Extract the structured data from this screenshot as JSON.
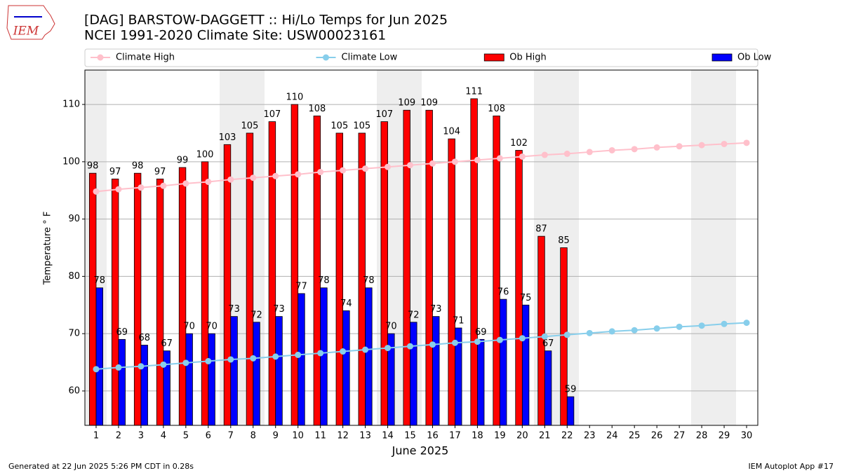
{
  "chart_data": {
    "type": "bar",
    "title": "[DAG] BARSTOW-DAGGETT :: Hi/Lo Temps for Jun 2025",
    "subtitle": "NCEI 1991-2020 Climate Site: USW00023161",
    "logo_text": "IEM",
    "x_label": "June 2025",
    "y_label": "Temperature ° F",
    "footer_left": "Generated at 22 Jun 2025 5:26 PM CDT in 0.28s",
    "footer_right": "IEM Autoplot App #17",
    "x": [
      1,
      2,
      3,
      4,
      5,
      6,
      7,
      8,
      9,
      10,
      11,
      12,
      13,
      14,
      15,
      16,
      17,
      18,
      19,
      20,
      21,
      22,
      23,
      24,
      25,
      26,
      27,
      28,
      29,
      30
    ],
    "xlim": [
      0.5,
      30.5
    ],
    "xticks": [
      1,
      2,
      3,
      4,
      5,
      6,
      7,
      8,
      9,
      10,
      11,
      12,
      13,
      14,
      15,
      16,
      17,
      18,
      19,
      20,
      21,
      22,
      23,
      24,
      25,
      26,
      27,
      28,
      29,
      30
    ],
    "ylim": [
      54,
      116
    ],
    "yticks": [
      60,
      70,
      80,
      90,
      100,
      110
    ],
    "grid": true,
    "legend": "top",
    "series": [
      {
        "name": "Climate High",
        "type": "line",
        "color": "#ffc0cb",
        "values": [
          94.8,
          95.2,
          95.5,
          95.8,
          96.2,
          96.5,
          96.9,
          97.2,
          97.5,
          97.8,
          98.2,
          98.5,
          98.8,
          99.1,
          99.4,
          99.7,
          100.0,
          100.3,
          100.6,
          100.9,
          101.2,
          101.4,
          101.7,
          102.0,
          102.2,
          102.5,
          102.7,
          102.9,
          103.1,
          103.3
        ]
      },
      {
        "name": "Climate Low",
        "type": "line",
        "color": "#87ceeb",
        "values": [
          63.8,
          64.1,
          64.3,
          64.6,
          64.9,
          65.2,
          65.5,
          65.7,
          66.0,
          66.3,
          66.6,
          66.9,
          67.2,
          67.5,
          67.8,
          68.1,
          68.4,
          68.6,
          68.9,
          69.2,
          69.5,
          69.8,
          70.1,
          70.4,
          70.6,
          70.9,
          71.2,
          71.4,
          71.7,
          71.9
        ]
      },
      {
        "name": "Ob High",
        "type": "bar",
        "color": "#ff0000",
        "values": [
          98,
          97,
          98,
          97,
          99,
          100,
          103,
          105,
          107,
          110,
          108,
          105,
          105,
          107,
          109,
          109,
          104,
          111,
          108,
          102,
          87,
          85,
          null,
          null,
          null,
          null,
          null,
          null,
          null,
          null
        ]
      },
      {
        "name": "Ob Low",
        "type": "bar",
        "color": "#0000ff",
        "values": [
          78,
          69,
          68,
          67,
          70,
          70,
          73,
          72,
          73,
          77,
          78,
          74,
          78,
          70,
          72,
          73,
          71,
          69,
          76,
          75,
          67,
          59,
          null,
          null,
          null,
          null,
          null,
          null,
          null,
          null
        ]
      }
    ]
  }
}
